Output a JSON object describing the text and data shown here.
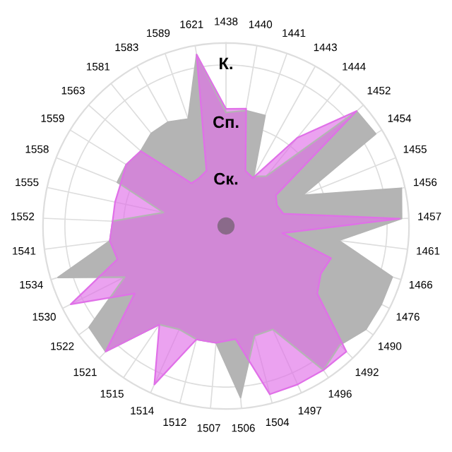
{
  "chart_data": {
    "type": "radar",
    "ylim": [
      0,
      1
    ],
    "grid": true,
    "yticks": [
      {
        "value": 0.25,
        "label": "Ск."
      },
      {
        "value": 0.56,
        "label": "Сп."
      },
      {
        "value": 0.88,
        "label": "К."
      }
    ],
    "categories": [
      "1438",
      "1440",
      "1441",
      "1443",
      "1444",
      "1452",
      "1454",
      "1455",
      "1456",
      "1457",
      "1461",
      "1466",
      "1476",
      "1490",
      "1492",
      "1496",
      "1497",
      "1504",
      "1506",
      "1507",
      "1512",
      "1514",
      "1515",
      "1521",
      "1522",
      "1530",
      "1534",
      "1541",
      "1552",
      "1555",
      "1558",
      "1559",
      "1563",
      "1581",
      "1583",
      "1589",
      "1621"
    ],
    "series": [
      {
        "color": "#b4b4b4",
        "values": [
          0.62,
          0.64,
          0.64,
          0.31,
          0.35,
          0.95,
          0.96,
          0.45,
          0.98,
          0.96,
          0.62,
          0.95,
          0.95,
          0.95,
          0.9,
          0.95,
          0.62,
          0.62,
          0.94,
          0.64,
          0.64,
          0.62,
          0.65,
          0.95,
          0.93,
          0.62,
          0.96,
          0.64,
          0.62,
          0.35,
          0.64,
          0.64,
          0.62,
          0.65,
          0.65,
          0.62,
          0.95
        ]
      },
      {
        "color": "#e070e8",
        "values": [
          0.64,
          0.65,
          0.32,
          0.3,
          0.62,
          0.95,
          0.32,
          0.3,
          0.32,
          0.95,
          0.31,
          0.6,
          0.58,
          0.62,
          0.95,
          0.95,
          0.95,
          0.95,
          0.62,
          0.64,
          0.64,
          0.95,
          0.65,
          0.95,
          0.62,
          0.95,
          0.62,
          0.64,
          0.62,
          0.62,
          0.62,
          0.64,
          0.62,
          0.3,
          0.3,
          0.32,
          0.95
        ]
      }
    ]
  }
}
